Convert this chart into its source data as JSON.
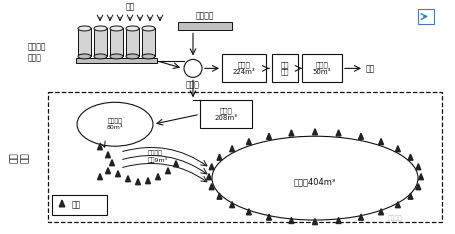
{
  "bg_color": "#ffffff",
  "fig_width": 4.56,
  "fig_height": 2.34,
  "dpi": 100,
  "rain_label": "降雨",
  "collector_label": "区域雨水\n收集井",
  "distributor_label": "分流井",
  "municipal_label": "市政管道",
  "sedimentation_label": "沉淤池\n208m³",
  "regulation_label": "调蓄池\n224m³",
  "purification_label": "净化\n处理",
  "clean_label": "清水池\n50m³",
  "reuse_label": "回用",
  "scenery_label": "景观鱼眼\n80m³",
  "stream_label": "人工景观\n小溪9m³",
  "lotus_label": "荷花池404m³",
  "vegetation_label": "植被",
  "park_label": "活水\n公园",
  "watermark": "大美地理"
}
